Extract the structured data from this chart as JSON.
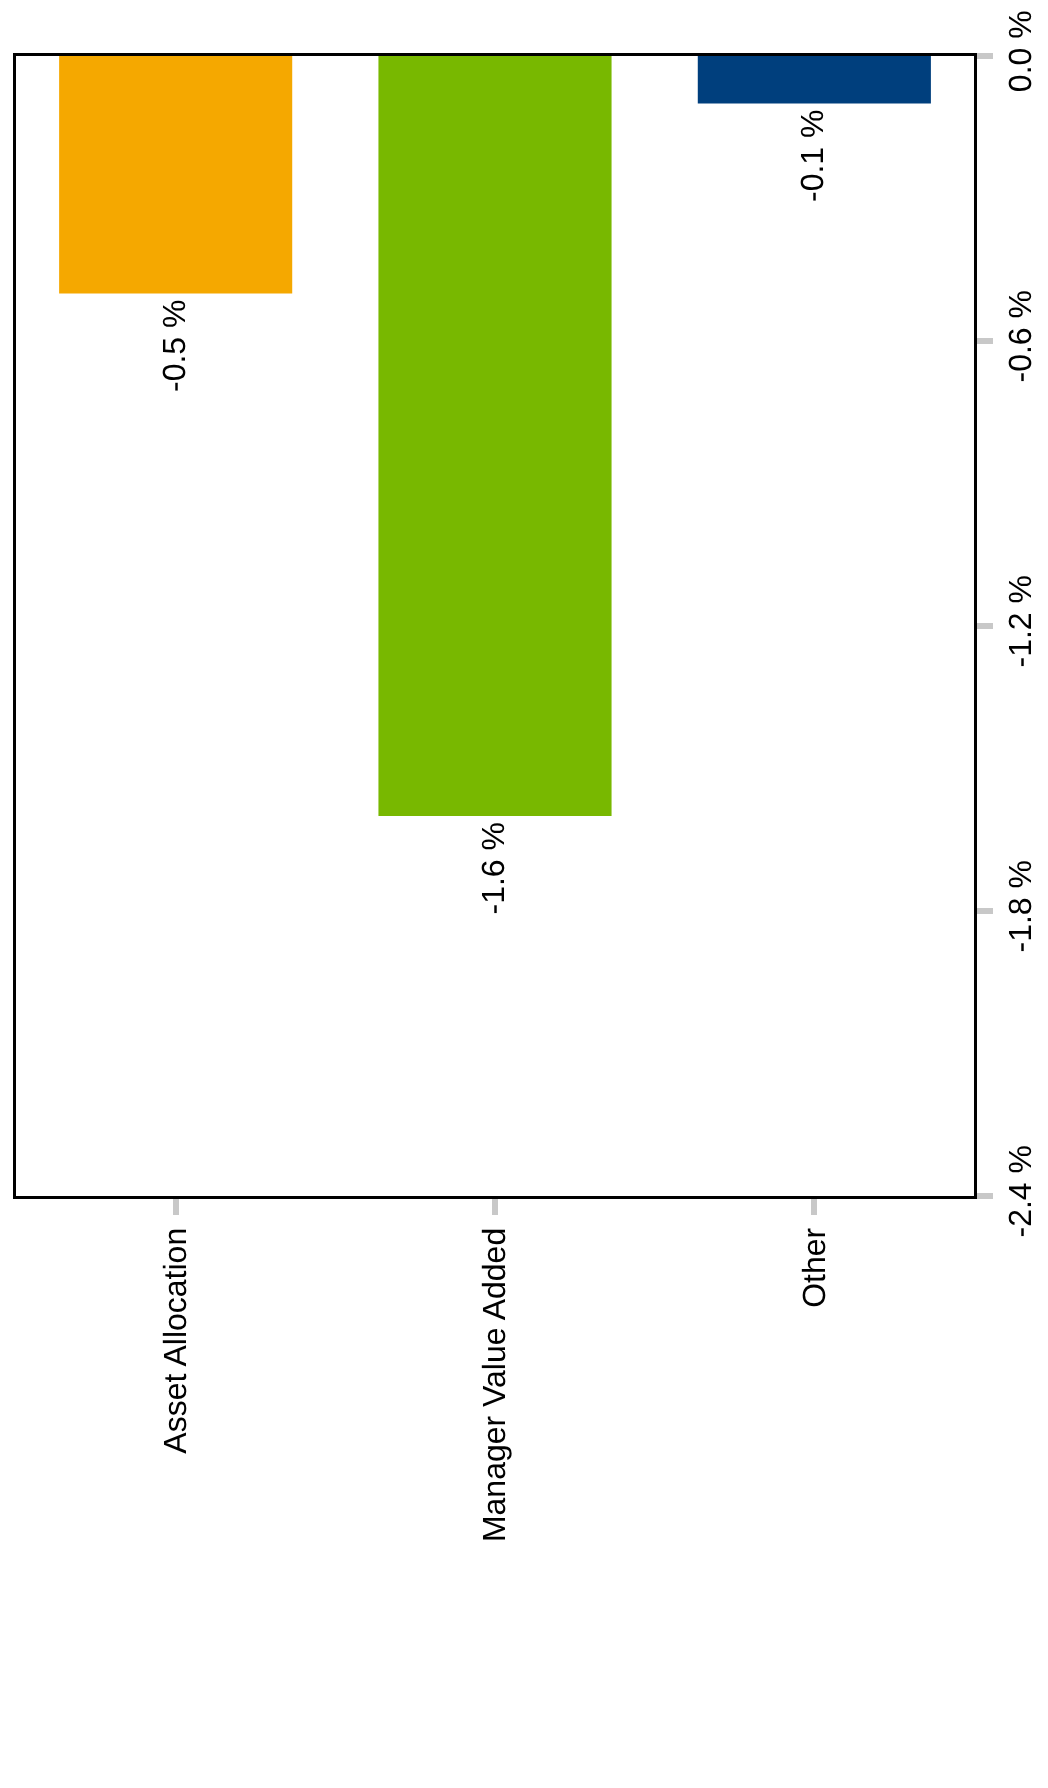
{
  "chart_data": {
    "type": "bar",
    "categories": [
      "Asset Allocation",
      "Manager Value Added",
      "Other"
    ],
    "values": [
      -0.5,
      -1.6,
      -0.1
    ],
    "colors": [
      "#f5a800",
      "#78b800",
      "#003f7d"
    ],
    "value_labels": [
      "-0.5 %",
      "-1.6 %",
      "-0.1 %"
    ],
    "ylim": [
      -2.4,
      0
    ],
    "yticks": [
      {
        "value": -2.4,
        "label": "-2.4 %"
      },
      {
        "value": -1.8,
        "label": "-1.8 %"
      },
      {
        "value": -1.2,
        "label": "-1.2 %"
      },
      {
        "value": -0.6,
        "label": "-0.6 %"
      },
      {
        "value": 0,
        "label": "0.0 %"
      }
    ],
    "grid": false,
    "legend": false
  }
}
